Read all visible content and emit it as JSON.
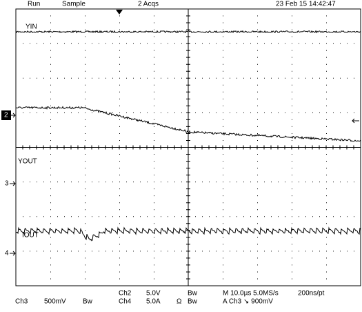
{
  "header": {
    "run": "Run",
    "mode": "Sample",
    "acquisitions": "2 Acqs",
    "timestamp": "23 Feb 15 14:42:47"
  },
  "traces": {
    "yin": "YIN",
    "yout": "YOUT",
    "iout": "IOUT"
  },
  "markers": {
    "ch2": "2",
    "ch3": "3",
    "ch4": "4"
  },
  "footer": {
    "row1": {
      "channel": "Ch2",
      "scale": "5.0V",
      "bw": "Bw",
      "timebase": "M 10.0µs 5.0MS/s",
      "resolution": "200ns/pt"
    },
    "row2": {
      "channel3": "Ch3",
      "scale3": "500mV",
      "bw3": "Bw",
      "channel4": "Ch4",
      "scale4": "5.0A",
      "ohm": "Ω",
      "bw4": "Bw",
      "trigger": "A Ch3 ↘ 900mV"
    }
  }
}
